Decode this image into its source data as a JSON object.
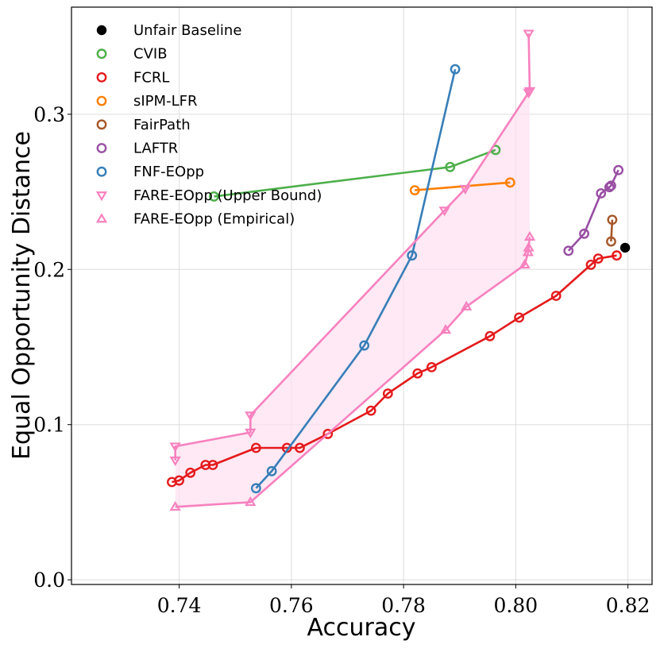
{
  "chart_data": {
    "type": "line",
    "title": "",
    "xlabel": "Accuracy",
    "ylabel": "Equal Opportunity Distance",
    "xlim": [
      0.7208,
      0.8243
    ],
    "ylim": [
      -0.003,
      0.369
    ],
    "xticks": [
      0.74,
      0.76,
      0.78,
      0.8,
      0.82
    ],
    "xtick_labels": [
      "0.74",
      "0.76",
      "0.78",
      "0.80",
      "0.82"
    ],
    "yticks": [
      0.0,
      0.1,
      0.2,
      0.3
    ],
    "ytick_labels": [
      "0.0",
      "0.1",
      "0.2",
      "0.3"
    ],
    "grid": true,
    "legend_position": "top-left",
    "series": [
      {
        "name": "Unfair Baseline",
        "color": "#000000",
        "marker": "filled-circle",
        "line": false,
        "points": [
          [
            0.8195,
            0.214
          ]
        ]
      },
      {
        "name": "CVIB",
        "color": "#4daf4a",
        "marker": "circle",
        "line": true,
        "points": [
          [
            0.7462,
            0.247
          ],
          [
            0.7883,
            0.266
          ],
          [
            0.7964,
            0.277
          ]
        ]
      },
      {
        "name": "FCRL",
        "color": "#e41a1c",
        "marker": "circle",
        "line": true,
        "points": [
          [
            0.7387,
            0.063
          ],
          [
            0.74,
            0.064
          ],
          [
            0.742,
            0.069
          ],
          [
            0.7447,
            0.074
          ],
          [
            0.746,
            0.074
          ],
          [
            0.7537,
            0.085
          ],
          [
            0.7592,
            0.085
          ],
          [
            0.7615,
            0.085
          ],
          [
            0.7665,
            0.094
          ],
          [
            0.7742,
            0.109
          ],
          [
            0.7772,
            0.12
          ],
          [
            0.7825,
            0.133
          ],
          [
            0.785,
            0.137
          ],
          [
            0.7954,
            0.157
          ],
          [
            0.8006,
            0.169
          ],
          [
            0.8072,
            0.183
          ],
          [
            0.8134,
            0.203
          ],
          [
            0.8147,
            0.207
          ],
          [
            0.818,
            0.209
          ]
        ]
      },
      {
        "name": "sIPM-LFR",
        "color": "#ff7f00",
        "marker": "circle",
        "line": true,
        "points": [
          [
            0.782,
            0.251
          ],
          [
            0.799,
            0.256
          ]
        ]
      },
      {
        "name": "FairPath",
        "color": "#a65628",
        "marker": "circle",
        "line": true,
        "points": [
          [
            0.8172,
            0.232
          ],
          [
            0.817,
            0.218
          ]
        ]
      },
      {
        "name": "LAFTR",
        "color": "#984ea3",
        "marker": "circle",
        "line": true,
        "points": [
          [
            0.8094,
            0.212
          ],
          [
            0.8122,
            0.223
          ],
          [
            0.8152,
            0.249
          ],
          [
            0.8167,
            0.253
          ],
          [
            0.817,
            0.254
          ],
          [
            0.8183,
            0.264
          ]
        ]
      },
      {
        "name": "FNF-EOpp",
        "color": "#377eb8",
        "marker": "circle",
        "line": true,
        "points": [
          [
            0.7537,
            0.059
          ],
          [
            0.7565,
            0.07
          ],
          [
            0.773,
            0.151
          ],
          [
            0.7815,
            0.209
          ],
          [
            0.7892,
            0.329
          ]
        ]
      },
      {
        "name": "FARE-EOpp (Upper Bound)",
        "color": "#f781bf",
        "marker": "triangle-down",
        "line": true,
        "points": [
          [
            0.7393,
            0.077
          ],
          [
            0.7393,
            0.086
          ],
          [
            0.7527,
            0.095
          ],
          [
            0.7527,
            0.106
          ],
          [
            0.7873,
            0.238
          ],
          [
            0.791,
            0.252
          ],
          [
            0.8023,
            0.314
          ],
          [
            0.8025,
            0.315
          ],
          [
            0.8023,
            0.352
          ]
        ]
      },
      {
        "name": "FARE-EOpp (Empirical)",
        "color": "#f781bf",
        "marker": "triangle-up",
        "line": true,
        "points": [
          [
            0.7393,
            0.047
          ],
          [
            0.7527,
            0.05
          ],
          [
            0.7875,
            0.161
          ],
          [
            0.7912,
            0.176
          ],
          [
            0.8016,
            0.203
          ],
          [
            0.8022,
            0.211
          ],
          [
            0.8023,
            0.214
          ],
          [
            0.8025,
            0.221
          ]
        ]
      }
    ],
    "band": {
      "between": [
        "FARE-EOpp (Upper Bound)",
        "FARE-EOpp (Empirical)"
      ],
      "color": "#fde0ef"
    },
    "legend": [
      {
        "label": "Unfair Baseline",
        "marker": "filled-circle",
        "color": "#000000"
      },
      {
        "label": "CVIB",
        "marker": "circle",
        "color": "#4daf4a"
      },
      {
        "label": "FCRL",
        "marker": "circle",
        "color": "#e41a1c"
      },
      {
        "label": "sIPM-LFR",
        "marker": "circle",
        "color": "#ff7f00"
      },
      {
        "label": "FairPath",
        "marker": "circle",
        "color": "#a65628"
      },
      {
        "label": "LAFTR",
        "marker": "circle",
        "color": "#984ea3"
      },
      {
        "label": "FNF-EOpp",
        "marker": "circle",
        "color": "#377eb8"
      },
      {
        "label": "FARE-EOpp (Upper Bound)",
        "marker": "triangle-down",
        "color": "#f781bf"
      },
      {
        "label": "FARE-EOpp (Empirical)",
        "marker": "triangle-up",
        "color": "#f781bf"
      }
    ]
  }
}
